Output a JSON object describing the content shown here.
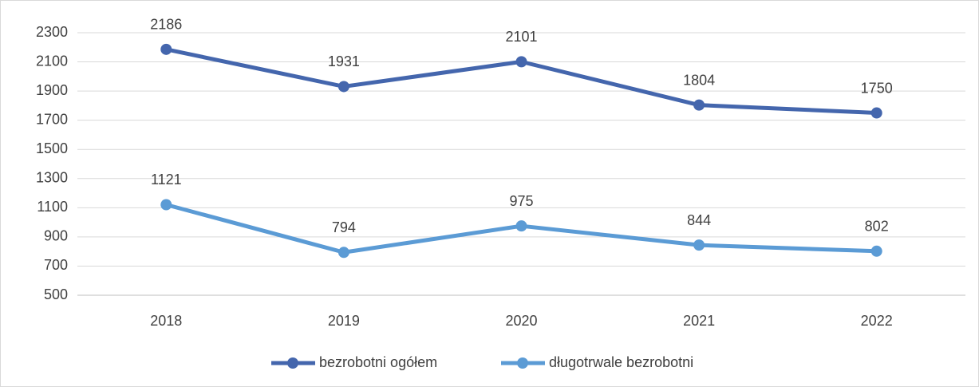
{
  "chart_data": {
    "type": "line",
    "categories": [
      "2018",
      "2019",
      "2020",
      "2021",
      "2022"
    ],
    "series": [
      {
        "name": "bezrobotni ogółem",
        "color": "#4466ad",
        "values": [
          2186,
          1931,
          2101,
          1804,
          1750
        ]
      },
      {
        "name": "długotrwale bezrobotni",
        "color": "#5b9bd5",
        "values": [
          1121,
          794,
          975,
          844,
          802
        ]
      }
    ],
    "ylim": [
      500,
      2300
    ],
    "yticks": [
      500,
      700,
      900,
      1100,
      1300,
      1500,
      1700,
      1900,
      2100,
      2300
    ],
    "grid": true,
    "legend": "bottom"
  }
}
